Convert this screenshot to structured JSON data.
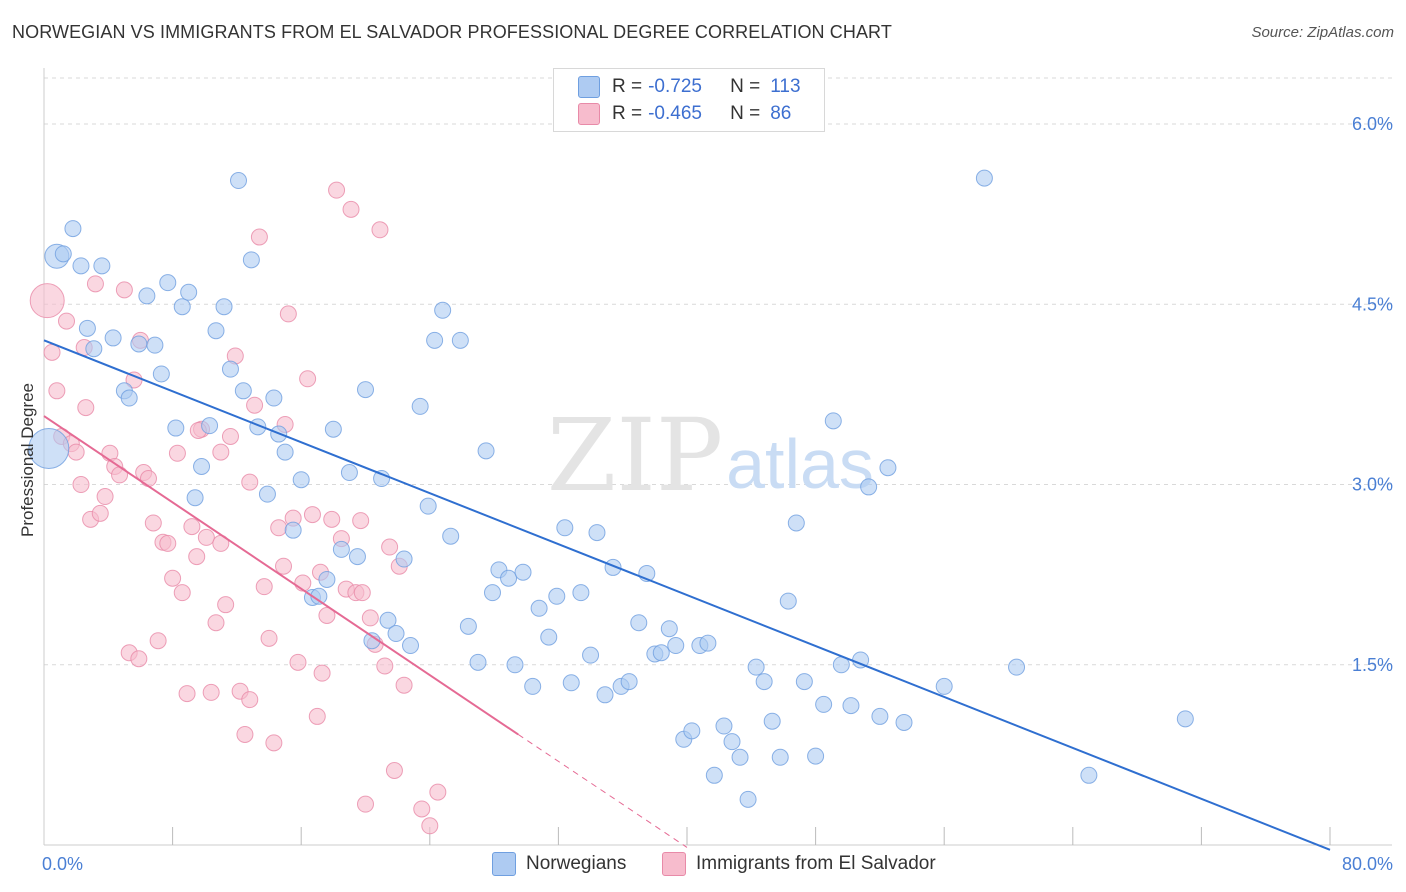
{
  "title": "NORWEGIAN VS IMMIGRANTS FROM EL SALVADOR PROFESSIONAL DEGREE CORRELATION CHART",
  "source": "Source: ZipAtlas.com",
  "watermark": {
    "zip": "ZIP",
    "atlas": "atlas"
  },
  "legend": {
    "rows": [
      {
        "r_label": "R =",
        "r_value": "-0.725",
        "n_label": "N =",
        "n_value": "113"
      },
      {
        "r_label": "R =",
        "r_value": "-0.465",
        "n_label": "N =",
        "n_value": "86"
      }
    ]
  },
  "bottom_legend": [
    "Norwegians",
    "Immigrants from El Salvador"
  ],
  "colors": {
    "blue_fill": "#aecbf2",
    "blue_stroke": "#6f9fe0",
    "blue_line": "#2f6fd0",
    "pink_fill": "#f7bccd",
    "pink_stroke": "#e88aa8",
    "pink_line": "#e56a94",
    "grid": "#d9d9d9",
    "tick_text": "#4a7fd4"
  },
  "chart_data": {
    "type": "scatter",
    "title": "NORWEGIAN VS IMMIGRANTS FROM EL SALVADOR PROFESSIONAL DEGREE CORRELATION CHART",
    "xlabel": "",
    "ylabel": "Professional Degree",
    "xlim": [
      0,
      80
    ],
    "ylim": [
      0,
      6.35
    ],
    "x_tick_labels": [
      "0.0%",
      "80.0%"
    ],
    "y_ticks": [
      1.5,
      3.0,
      4.5,
      6.0
    ],
    "y_tick_labels": [
      "1.5%",
      "3.0%",
      "4.5%",
      "6.0%"
    ],
    "grid": "horizontal dashed",
    "series": [
      {
        "name": "Norwegians",
        "r": -0.725,
        "n": 113,
        "trend": {
          "x0": 0,
          "y0": 4.2,
          "x1": 80,
          "y1": -0.04
        },
        "points": [
          [
            0.3,
            3.3
          ],
          [
            0.8,
            4.9
          ],
          [
            1.2,
            4.92
          ],
          [
            1.8,
            5.13
          ],
          [
            2.3,
            4.82
          ],
          [
            2.7,
            4.3
          ],
          [
            3.1,
            4.13
          ],
          [
            3.6,
            4.82
          ],
          [
            4.3,
            4.22
          ],
          [
            5.0,
            3.78
          ],
          [
            5.3,
            3.72
          ],
          [
            5.9,
            4.17
          ],
          [
            6.4,
            4.57
          ],
          [
            6.9,
            4.16
          ],
          [
            7.3,
            3.92
          ],
          [
            7.7,
            4.68
          ],
          [
            8.2,
            3.47
          ],
          [
            8.6,
            4.48
          ],
          [
            9.0,
            4.6
          ],
          [
            9.4,
            2.89
          ],
          [
            9.8,
            3.15
          ],
          [
            10.3,
            3.49
          ],
          [
            10.7,
            4.28
          ],
          [
            11.2,
            4.48
          ],
          [
            11.6,
            3.96
          ],
          [
            12.1,
            5.53
          ],
          [
            12.4,
            3.78
          ],
          [
            12.9,
            4.87
          ],
          [
            13.3,
            3.48
          ],
          [
            13.9,
            2.92
          ],
          [
            14.3,
            3.72
          ],
          [
            14.6,
            3.42
          ],
          [
            15.0,
            3.27
          ],
          [
            15.5,
            2.62
          ],
          [
            16.0,
            3.04
          ],
          [
            16.7,
            2.06
          ],
          [
            17.1,
            2.07
          ],
          [
            17.6,
            2.21
          ],
          [
            18.0,
            3.46
          ],
          [
            18.5,
            2.46
          ],
          [
            19.0,
            3.1
          ],
          [
            19.5,
            2.4
          ],
          [
            20.0,
            3.79
          ],
          [
            20.4,
            1.7
          ],
          [
            21.0,
            3.05
          ],
          [
            21.4,
            1.87
          ],
          [
            21.9,
            1.76
          ],
          [
            22.4,
            2.38
          ],
          [
            22.8,
            1.66
          ],
          [
            23.4,
            3.65
          ],
          [
            23.9,
            2.82
          ],
          [
            24.3,
            4.2
          ],
          [
            24.8,
            4.45
          ],
          [
            25.3,
            2.57
          ],
          [
            25.9,
            4.2
          ],
          [
            26.4,
            1.82
          ],
          [
            27.0,
            1.52
          ],
          [
            27.5,
            3.28
          ],
          [
            27.9,
            2.1
          ],
          [
            28.3,
            2.29
          ],
          [
            28.9,
            2.22
          ],
          [
            29.3,
            1.5
          ],
          [
            29.8,
            2.27
          ],
          [
            30.4,
            1.32
          ],
          [
            30.8,
            1.97
          ],
          [
            31.4,
            1.73
          ],
          [
            31.9,
            2.07
          ],
          [
            32.4,
            2.64
          ],
          [
            32.8,
            1.35
          ],
          [
            33.4,
            2.1
          ],
          [
            34.0,
            1.58
          ],
          [
            34.4,
            2.6
          ],
          [
            34.9,
            1.25
          ],
          [
            35.4,
            2.31
          ],
          [
            35.9,
            1.32
          ],
          [
            36.4,
            1.36
          ],
          [
            37.0,
            1.85
          ],
          [
            37.5,
            2.26
          ],
          [
            38.0,
            1.59
          ],
          [
            38.4,
            1.6
          ],
          [
            38.9,
            1.8
          ],
          [
            39.3,
            1.66
          ],
          [
            39.8,
            0.88
          ],
          [
            40.3,
            0.95
          ],
          [
            40.8,
            1.66
          ],
          [
            41.3,
            1.68
          ],
          [
            41.7,
            0.58
          ],
          [
            42.3,
            0.99
          ],
          [
            42.8,
            0.86
          ],
          [
            43.3,
            0.73
          ],
          [
            43.8,
            0.38
          ],
          [
            44.3,
            1.48
          ],
          [
            44.8,
            1.36
          ],
          [
            45.3,
            1.03
          ],
          [
            45.8,
            0.73
          ],
          [
            46.3,
            2.03
          ],
          [
            46.8,
            2.68
          ],
          [
            47.3,
            1.36
          ],
          [
            48.0,
            0.74
          ],
          [
            48.5,
            1.17
          ],
          [
            49.1,
            3.53
          ],
          [
            49.6,
            1.5
          ],
          [
            50.2,
            1.16
          ],
          [
            50.8,
            1.54
          ],
          [
            51.3,
            2.98
          ],
          [
            52.0,
            1.07
          ],
          [
            52.5,
            3.14
          ],
          [
            53.5,
            1.02
          ],
          [
            56.0,
            1.32
          ],
          [
            58.5,
            5.55
          ],
          [
            60.5,
            1.48
          ],
          [
            65.0,
            0.58
          ],
          [
            71.0,
            1.05
          ]
        ]
      },
      {
        "name": "Immigrants from El Salvador",
        "r": -0.465,
        "n": 86,
        "trend": {
          "x0": 0,
          "y0": 3.57,
          "x1": 29.5,
          "y1": 0.92
        },
        "trend_dashed": {
          "x0": 29.5,
          "y0": 0.92,
          "x1": 40,
          "y1": -0.02
        },
        "points": [
          [
            0.2,
            4.53
          ],
          [
            0.5,
            4.1
          ],
          [
            0.8,
            3.78
          ],
          [
            1.1,
            3.4
          ],
          [
            1.4,
            4.36
          ],
          [
            1.7,
            3.34
          ],
          [
            2.0,
            3.27
          ],
          [
            2.3,
            3.0
          ],
          [
            2.6,
            3.64
          ],
          [
            2.9,
            2.71
          ],
          [
            3.2,
            4.67
          ],
          [
            3.5,
            2.76
          ],
          [
            3.8,
            2.9
          ],
          [
            4.1,
            3.26
          ],
          [
            4.4,
            3.15
          ],
          [
            4.7,
            3.08
          ],
          [
            5.0,
            4.62
          ],
          [
            5.3,
            1.6
          ],
          [
            5.6,
            3.87
          ],
          [
            5.9,
            1.55
          ],
          [
            6.2,
            3.1
          ],
          [
            6.5,
            3.05
          ],
          [
            6.8,
            2.68
          ],
          [
            7.1,
            1.7
          ],
          [
            7.4,
            2.52
          ],
          [
            7.7,
            2.51
          ],
          [
            8.0,
            2.22
          ],
          [
            8.3,
            3.26
          ],
          [
            8.6,
            2.1
          ],
          [
            8.9,
            1.26
          ],
          [
            9.2,
            2.65
          ],
          [
            9.5,
            2.4
          ],
          [
            9.8,
            3.46
          ],
          [
            10.1,
            2.56
          ],
          [
            10.4,
            1.27
          ],
          [
            10.7,
            1.85
          ],
          [
            11.0,
            2.51
          ],
          [
            11.3,
            2.0
          ],
          [
            11.6,
            3.4
          ],
          [
            11.9,
            4.07
          ],
          [
            12.2,
            1.28
          ],
          [
            12.5,
            0.92
          ],
          [
            12.8,
            1.21
          ],
          [
            13.1,
            3.66
          ],
          [
            13.4,
            5.06
          ],
          [
            13.7,
            2.15
          ],
          [
            14.0,
            1.72
          ],
          [
            14.3,
            0.85
          ],
          [
            14.6,
            2.64
          ],
          [
            14.9,
            2.32
          ],
          [
            15.2,
            4.42
          ],
          [
            15.5,
            2.72
          ],
          [
            15.8,
            1.52
          ],
          [
            16.1,
            2.18
          ],
          [
            16.4,
            3.88
          ],
          [
            16.7,
            2.75
          ],
          [
            17.0,
            1.07
          ],
          [
            17.3,
            1.43
          ],
          [
            17.6,
            1.91
          ],
          [
            17.9,
            2.71
          ],
          [
            18.2,
            5.45
          ],
          [
            18.5,
            2.55
          ],
          [
            18.8,
            2.13
          ],
          [
            19.1,
            5.29
          ],
          [
            19.4,
            2.1
          ],
          [
            19.7,
            2.7
          ],
          [
            20.0,
            0.34
          ],
          [
            20.3,
            1.89
          ],
          [
            20.6,
            1.67
          ],
          [
            20.9,
            5.12
          ],
          [
            21.2,
            1.49
          ],
          [
            21.5,
            2.48
          ],
          [
            21.8,
            0.62
          ],
          [
            22.1,
            2.32
          ],
          [
            22.4,
            1.33
          ],
          [
            23.5,
            0.3
          ],
          [
            24.0,
            0.16
          ],
          [
            24.5,
            0.44
          ],
          [
            2.5,
            4.14
          ],
          [
            6.0,
            4.2
          ],
          [
            9.6,
            3.45
          ],
          [
            11.0,
            3.27
          ],
          [
            12.8,
            3.02
          ],
          [
            15.0,
            3.5
          ],
          [
            17.2,
            2.27
          ],
          [
            19.8,
            2.1
          ]
        ]
      }
    ]
  }
}
